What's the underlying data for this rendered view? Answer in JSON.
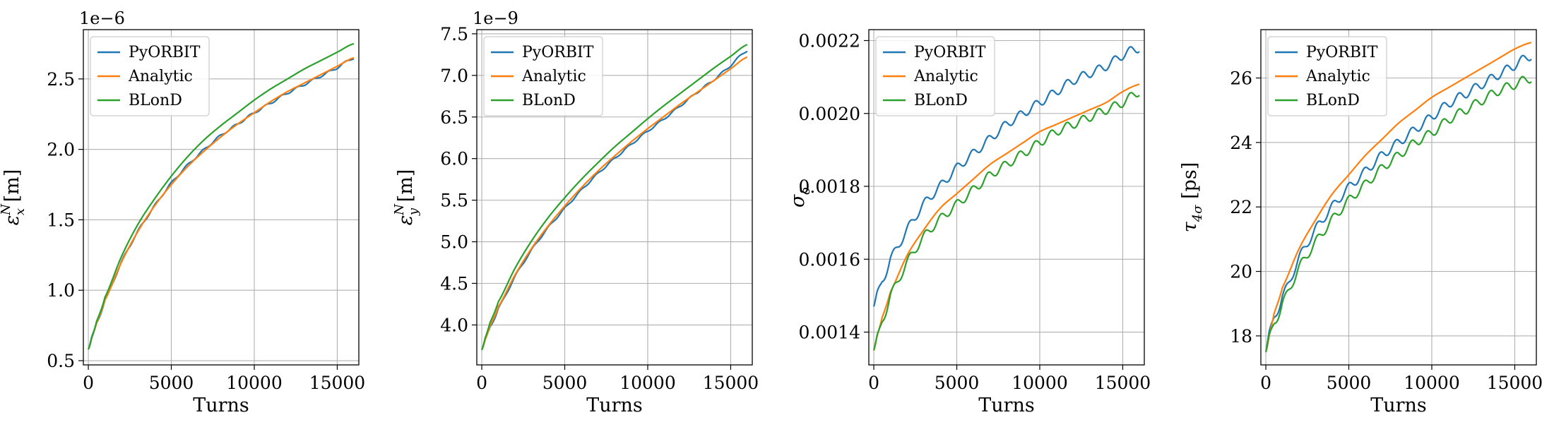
{
  "chart_data": [
    {
      "type": "line",
      "xlabel": "Turns",
      "ylabel": "ε",
      "ylabel_sup": "N",
      "ylabel_sub": "x",
      "ylabel_unit": " [m]",
      "y_offset_label": "1e−6",
      "xlim": [
        -300,
        16300
      ],
      "ylim": [
        0.47,
        2.85
      ],
      "xticks": [
        0,
        5000,
        10000,
        15000
      ],
      "yticks": [
        0.5,
        1.0,
        1.5,
        2.0,
        2.5
      ],
      "ytick_decimals": 1,
      "grid": true,
      "legend_position": "upper-left",
      "x": [
        0,
        200,
        500,
        1000,
        2000,
        3000,
        4000,
        5000,
        6000,
        7000,
        8000,
        9000,
        10000,
        11000,
        12000,
        13000,
        14000,
        15000,
        16000
      ],
      "series": [
        {
          "name": "PyORBIT",
          "color": "#1f77b4",
          "wiggle": 0.008,
          "values": [
            0.58,
            0.66,
            0.77,
            0.93,
            1.2,
            1.42,
            1.6,
            1.76,
            1.89,
            2.0,
            2.1,
            2.18,
            2.26,
            2.33,
            2.4,
            2.46,
            2.52,
            2.58,
            2.65
          ]
        },
        {
          "name": "Analytic",
          "color": "#ff7f0e",
          "wiggle": 0,
          "values": [
            0.58,
            0.66,
            0.77,
            0.93,
            1.2,
            1.42,
            1.6,
            1.75,
            1.88,
            1.99,
            2.09,
            2.18,
            2.26,
            2.34,
            2.41,
            2.47,
            2.53,
            2.59,
            2.65
          ]
        },
        {
          "name": "BLonD",
          "color": "#2ca02c",
          "wiggle": 0,
          "values": [
            0.58,
            0.66,
            0.78,
            0.95,
            1.24,
            1.47,
            1.65,
            1.81,
            1.95,
            2.07,
            2.17,
            2.26,
            2.35,
            2.43,
            2.5,
            2.57,
            2.63,
            2.69,
            2.75
          ]
        }
      ]
    },
    {
      "type": "line",
      "xlabel": "Turns",
      "ylabel": "ε",
      "ylabel_sup": "N",
      "ylabel_sub": "y",
      "ylabel_unit": " [m]",
      "y_offset_label": "1e−9",
      "xlim": [
        -300,
        16300
      ],
      "ylim": [
        3.52,
        7.55
      ],
      "xticks": [
        0,
        5000,
        10000,
        15000
      ],
      "yticks": [
        4.0,
        4.5,
        5.0,
        5.5,
        6.0,
        6.5,
        7.0,
        7.5
      ],
      "ytick_decimals": 1,
      "grid": true,
      "legend_position": "upper-left",
      "x": [
        0,
        200,
        500,
        1000,
        2000,
        3000,
        4000,
        5000,
        6000,
        7000,
        8000,
        9000,
        10000,
        11000,
        12000,
        13000,
        14000,
        15000,
        16000
      ],
      "series": [
        {
          "name": "PyORBIT",
          "color": "#1f77b4",
          "wiggle": 0.012,
          "values": [
            3.7,
            3.82,
            3.98,
            4.2,
            4.58,
            4.9,
            5.17,
            5.4,
            5.62,
            5.82,
            6.0,
            6.17,
            6.33,
            6.48,
            6.64,
            6.8,
            6.95,
            7.12,
            7.3
          ]
        },
        {
          "name": "Analytic",
          "color": "#ff7f0e",
          "wiggle": 0,
          "values": [
            3.7,
            3.82,
            3.99,
            4.22,
            4.6,
            4.92,
            5.19,
            5.43,
            5.65,
            5.85,
            6.03,
            6.2,
            6.36,
            6.51,
            6.66,
            6.8,
            6.94,
            7.08,
            7.22
          ]
        },
        {
          "name": "BLonD",
          "color": "#2ca02c",
          "wiggle": 0,
          "values": [
            3.7,
            3.84,
            4.03,
            4.28,
            4.68,
            5.01,
            5.29,
            5.53,
            5.75,
            5.95,
            6.14,
            6.31,
            6.48,
            6.64,
            6.79,
            6.94,
            7.09,
            7.23,
            7.37
          ]
        }
      ]
    },
    {
      "type": "line",
      "xlabel": "Turns",
      "ylabel": "σ",
      "ylabel_sup": "",
      "ylabel_sub": "δ",
      "ylabel_unit": "",
      "y_offset_label": "",
      "xlim": [
        -300,
        16300
      ],
      "ylim": [
        0.00131,
        0.00223
      ],
      "xticks": [
        0,
        5000,
        10000,
        15000
      ],
      "yticks": [
        0.0014,
        0.0016,
        0.0018,
        0.002,
        0.0022
      ],
      "ytick_decimals": 4,
      "grid": true,
      "legend_position": "upper-left",
      "x": [
        0,
        200,
        500,
        1000,
        2000,
        3000,
        4000,
        5000,
        6000,
        7000,
        8000,
        9000,
        10000,
        11000,
        12000,
        13000,
        14000,
        15000,
        16000
      ],
      "series": [
        {
          "name": "PyORBIT",
          "color": "#1f77b4",
          "wiggle": 1.2e-05,
          "values": [
            0.00147,
            0.0015,
            0.00154,
            0.0016,
            0.00168,
            0.00175,
            0.0018,
            0.00185,
            0.00189,
            0.00193,
            0.00197,
            0.002,
            0.00203,
            0.00206,
            0.00209,
            0.00211,
            0.00213,
            0.00216,
            0.00218
          ]
        },
        {
          "name": "Analytic",
          "color": "#ff7f0e",
          "wiggle": 0,
          "values": [
            0.00135,
            0.00139,
            0.00144,
            0.00151,
            0.00161,
            0.00168,
            0.00174,
            0.00178,
            0.00182,
            0.00186,
            0.00189,
            0.00192,
            0.00195,
            0.00197,
            0.00199,
            0.00201,
            0.00203,
            0.00206,
            0.00208
          ]
        },
        {
          "name": "BLonD",
          "color": "#2ca02c",
          "wiggle": 1.2e-05,
          "values": [
            0.00135,
            0.00138,
            0.00143,
            0.0015,
            0.00159,
            0.00166,
            0.00171,
            0.00175,
            0.00179,
            0.00183,
            0.00186,
            0.00189,
            0.00192,
            0.00195,
            0.00197,
            0.00199,
            0.00201,
            0.00203,
            0.00206
          ]
        }
      ]
    },
    {
      "type": "line",
      "xlabel": "Turns",
      "ylabel": "τ",
      "ylabel_sup": "",
      "ylabel_sub": "4σ",
      "ylabel_unit": " [ps]",
      "y_offset_label": "",
      "xlim": [
        -300,
        16300
      ],
      "ylim": [
        17.1,
        27.5
      ],
      "xticks": [
        0,
        5000,
        10000,
        15000
      ],
      "yticks": [
        18,
        20,
        22,
        24,
        26
      ],
      "ytick_decimals": 0,
      "grid": true,
      "legend_position": "upper-left",
      "x": [
        0,
        200,
        500,
        1000,
        2000,
        3000,
        4000,
        5000,
        6000,
        7000,
        8000,
        9000,
        10000,
        11000,
        12000,
        13000,
        14000,
        15000,
        16000
      ],
      "series": [
        {
          "name": "PyORBIT",
          "color": "#1f77b4",
          "wiggle": 0.14,
          "values": [
            17.5,
            18.0,
            18.6,
            19.2,
            20.4,
            21.3,
            22.0,
            22.6,
            23.1,
            23.6,
            24.0,
            24.4,
            24.8,
            25.2,
            25.5,
            25.8,
            26.1,
            26.4,
            26.7
          ]
        },
        {
          "name": "Analytic",
          "color": "#ff7f0e",
          "wiggle": 0,
          "values": [
            17.5,
            18.0,
            18.7,
            19.5,
            20.7,
            21.6,
            22.4,
            23.0,
            23.6,
            24.1,
            24.6,
            25.0,
            25.4,
            25.7,
            26.0,
            26.3,
            26.6,
            26.9,
            27.1
          ]
        },
        {
          "name": "BLonD",
          "color": "#2ca02c",
          "wiggle": 0.14,
          "values": [
            17.5,
            17.9,
            18.4,
            19.0,
            20.1,
            20.9,
            21.6,
            22.2,
            22.7,
            23.2,
            23.6,
            24.0,
            24.3,
            24.7,
            25.0,
            25.3,
            25.6,
            25.8,
            26.0
          ]
        }
      ]
    }
  ]
}
